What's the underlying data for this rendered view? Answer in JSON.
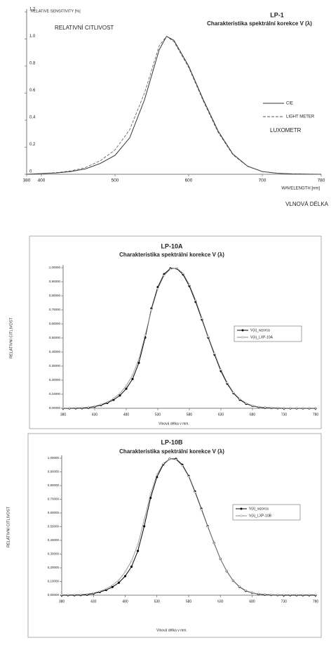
{
  "chart_data": [
    {
      "type": "line",
      "title": "LP-1",
      "subtitle": "Charakteristika spektrální korekce V (λ)",
      "y_label": "RELATIVE SENSITIVITY [%]",
      "x_label": "WAVELENGTH [nm]",
      "annotations": [
        "RELATIVNÍ CITLIVOST",
        "LUXOMETR",
        "VLNOVÁ DÉLKA"
      ],
      "x": [
        380,
        400,
        420,
        440,
        460,
        480,
        500,
        520,
        540,
        560,
        570,
        580,
        600,
        620,
        640,
        660,
        680,
        700,
        720,
        740,
        760,
        780
      ],
      "series": [
        {
          "name": "CIE",
          "color": "#333333",
          "dashed": false,
          "values": [
            0,
            0.005,
            0.01,
            0.02,
            0.04,
            0.08,
            0.14,
            0.27,
            0.55,
            0.92,
            1.02,
            0.99,
            0.8,
            0.55,
            0.32,
            0.15,
            0.06,
            0.02,
            0.008,
            0.003,
            0.001,
            0
          ]
        },
        {
          "name": "LIGHT METER",
          "color": "#555555",
          "dashed": true,
          "values": [
            0,
            0.006,
            0.012,
            0.025,
            0.05,
            0.1,
            0.18,
            0.33,
            0.6,
            0.95,
            1.02,
            0.98,
            0.79,
            0.54,
            0.31,
            0.145,
            0.058,
            0.02,
            0.008,
            0.003,
            0.001,
            0
          ]
        }
      ],
      "xlim": [
        380,
        780
      ],
      "xticks": [
        380,
        400,
        500,
        600,
        700,
        780
      ],
      "ylim": [
        0,
        1.2
      ],
      "yticks": [
        0,
        0.2,
        0.4,
        0.6,
        0.8,
        {
          "value": 1,
          "label": "1.0"
        },
        1.2
      ],
      "markers": false,
      "legend": "right"
    },
    {
      "type": "line",
      "title": "LP-10A",
      "subtitle": "Charakteristika spektrální korekce V (λ)",
      "y_label": "RELATIVNÍ CITLIVOST",
      "x_label": "Vlnová délka v mm.",
      "x": [
        380,
        390,
        400,
        410,
        420,
        430,
        440,
        450,
        460,
        470,
        480,
        490,
        500,
        510,
        520,
        530,
        540,
        550,
        560,
        570,
        580,
        590,
        600,
        610,
        620,
        630,
        640,
        650,
        660,
        670,
        680,
        690,
        700,
        710,
        720,
        730,
        740,
        750,
        760,
        770,
        780
      ],
      "series": [
        {
          "name": "V(λ)_wzorca",
          "color": "#000000",
          "dashed": false,
          "values": [
            0,
            0,
            0,
            0.001,
            0.004,
            0.012,
            0.023,
            0.038,
            0.06,
            0.091,
            0.139,
            0.208,
            0.323,
            0.503,
            0.71,
            0.862,
            0.954,
            0.995,
            0.995,
            0.952,
            0.87,
            0.757,
            0.631,
            0.503,
            0.381,
            0.265,
            0.175,
            0.107,
            0.061,
            0.032,
            0.017,
            0.008,
            0.004,
            0.002,
            0.001,
            0,
            0,
            0,
            0,
            0,
            0
          ]
        },
        {
          "name": "V(λ)_LXP-10A",
          "color": "#888888",
          "dashed": false,
          "values": [
            0.002,
            0.002,
            0.003,
            0.004,
            0.007,
            0.015,
            0.027,
            0.044,
            0.07,
            0.105,
            0.16,
            0.235,
            0.35,
            0.52,
            0.7,
            0.85,
            0.945,
            0.99,
            0.998,
            0.96,
            0.88,
            0.77,
            0.64,
            0.51,
            0.39,
            0.275,
            0.182,
            0.112,
            0.066,
            0.036,
            0.019,
            0.01,
            0.006,
            0.004,
            0.003,
            0.002,
            0.002,
            0.002,
            0.002,
            0.002,
            0.002
          ]
        }
      ],
      "xlim": [
        380,
        780
      ],
      "xticks": [
        380,
        430,
        480,
        530,
        580,
        630,
        680,
        730,
        780
      ],
      "ylim": [
        0,
        1
      ],
      "yticks": [
        {
          "value": 0,
          "label": "0,00000"
        },
        {
          "value": 0.1,
          "label": "0,10000"
        },
        {
          "value": 0.2,
          "label": "0,20000"
        },
        {
          "value": 0.3,
          "label": "0,30000"
        },
        {
          "value": 0.4,
          "label": "0,40000"
        },
        {
          "value": 0.5,
          "label": "0,50000"
        },
        {
          "value": 0.6,
          "label": "0,60000"
        },
        {
          "value": 0.7,
          "label": "0,70000"
        },
        {
          "value": 0.8,
          "label": "0,80000"
        },
        {
          "value": 0.9,
          "label": "0,90000"
        },
        {
          "value": 1,
          "label": "1,00000"
        }
      ],
      "markers": true,
      "legend": "right"
    },
    {
      "type": "line",
      "title": "LP-10B",
      "subtitle": "Charakteristika spektrální korekce V (λ)",
      "y_label": "RELATIVNÍ CITLIVOST",
      "x_label": "Vlnová délka v mm.",
      "x": [
        380,
        390,
        400,
        410,
        420,
        430,
        440,
        450,
        460,
        470,
        480,
        490,
        500,
        510,
        520,
        530,
        540,
        550,
        560,
        570,
        580,
        590,
        600,
        610,
        620,
        630,
        640,
        650,
        660,
        670,
        680,
        690,
        700,
        710,
        720,
        730,
        740,
        750,
        760,
        770,
        780
      ],
      "series": [
        {
          "name": "V(λ)_wzorca",
          "color": "#000000",
          "dashed": false,
          "values": [
            0,
            0,
            0,
            0.001,
            0.004,
            0.012,
            0.023,
            0.038,
            0.06,
            0.091,
            0.139,
            0.208,
            0.323,
            0.503,
            0.71,
            0.862,
            0.954,
            0.995,
            0.995,
            0.952,
            0.87,
            0.757,
            0.631,
            0.503,
            0.381,
            0.265,
            0.175,
            0.107,
            0.061,
            0.032,
            0.017,
            0.008,
            0.004,
            0.002,
            0.001,
            0,
            0,
            0,
            0,
            0,
            0
          ]
        },
        {
          "name": "V(λ)_LXP-10B",
          "color": "#888888",
          "dashed": false,
          "values": [
            0.003,
            0.003,
            0.004,
            0.005,
            0.008,
            0.016,
            0.028,
            0.046,
            0.073,
            0.11,
            0.17,
            0.25,
            0.37,
            0.55,
            0.74,
            0.88,
            0.96,
            0.995,
            0.99,
            0.945,
            0.865,
            0.75,
            0.625,
            0.5,
            0.38,
            0.265,
            0.176,
            0.108,
            0.063,
            0.034,
            0.018,
            0.01,
            0.006,
            0.004,
            0.003,
            0.003,
            0.003,
            0.003,
            0.003,
            0.003,
            0.003
          ]
        }
      ],
      "xlim": [
        380,
        780
      ],
      "xticks": [
        380,
        430,
        480,
        530,
        580,
        630,
        680,
        730,
        780
      ],
      "ylim": [
        0,
        1
      ],
      "yticks": [
        {
          "value": 0,
          "label": "0,00000"
        },
        {
          "value": 0.1,
          "label": "0,10000"
        },
        {
          "value": 0.2,
          "label": "0,20000"
        },
        {
          "value": 0.3,
          "label": "0,30000"
        },
        {
          "value": 0.4,
          "label": "0,40000"
        },
        {
          "value": 0.5,
          "label": "0,50000"
        },
        {
          "value": 0.6,
          "label": "0,60000"
        },
        {
          "value": 0.7,
          "label": "0,70000"
        },
        {
          "value": 0.8,
          "label": "0,80000"
        },
        {
          "value": 0.9,
          "label": "0,90000"
        },
        {
          "value": 1,
          "label": "1,00000"
        }
      ],
      "markers": true,
      "legend": "right"
    }
  ]
}
